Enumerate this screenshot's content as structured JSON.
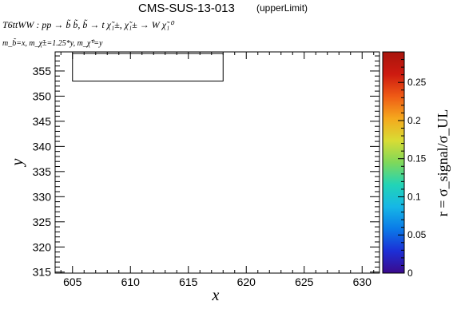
{
  "header": {
    "title": "CMS-SUS-13-013",
    "subtitle": "(upperLimit)",
    "process_line": "T6ttWW : pp → b̃ b̃, b̃ → t χ̃₁±, χ̃₁± → W χ̃₁⁰",
    "mass_line": "m_b̃=x, m_χ̃±=1.25*y, m_χ̃⁰=y"
  },
  "colorbar": {
    "label": "r = σ_signal/σ_UL",
    "range": [
      0,
      0.29
    ],
    "ticks": [
      0,
      0.05,
      0.1,
      0.15,
      0.2,
      0.25
    ],
    "tick_labels": [
      "0",
      "0.05",
      "0.1",
      "0.15",
      "0.2",
      "0.25"
    ],
    "palette": [
      "#3b0a8c",
      "#1c2fd6",
      "#0a7ae8",
      "#16b7e6",
      "#22d4b6",
      "#7fd85a",
      "#d9dc34",
      "#f5a81d",
      "#ef5a15",
      "#cd1a10",
      "#a8150d"
    ]
  },
  "chart_data": {
    "type": "heatmap",
    "xlabel": "x",
    "ylabel": "y",
    "xlim": [
      603.5,
      631.5
    ],
    "ylim": [
      314.8,
      358.8
    ],
    "x_ticks": [
      605,
      610,
      615,
      620,
      625,
      630
    ],
    "x_tick_labels": [
      "605",
      "610",
      "615",
      "620",
      "625",
      "630"
    ],
    "y_ticks": [
      315,
      320,
      325,
      330,
      335,
      340,
      345,
      350,
      355
    ],
    "y_tick_labels": [
      "315",
      "320",
      "325",
      "330",
      "335",
      "340",
      "345",
      "350",
      "355"
    ],
    "boxes": [
      {
        "x0": 605.0,
        "x1": 618.0,
        "y0": 353.0,
        "y1": 358.5
      }
    ],
    "grid": false
  }
}
